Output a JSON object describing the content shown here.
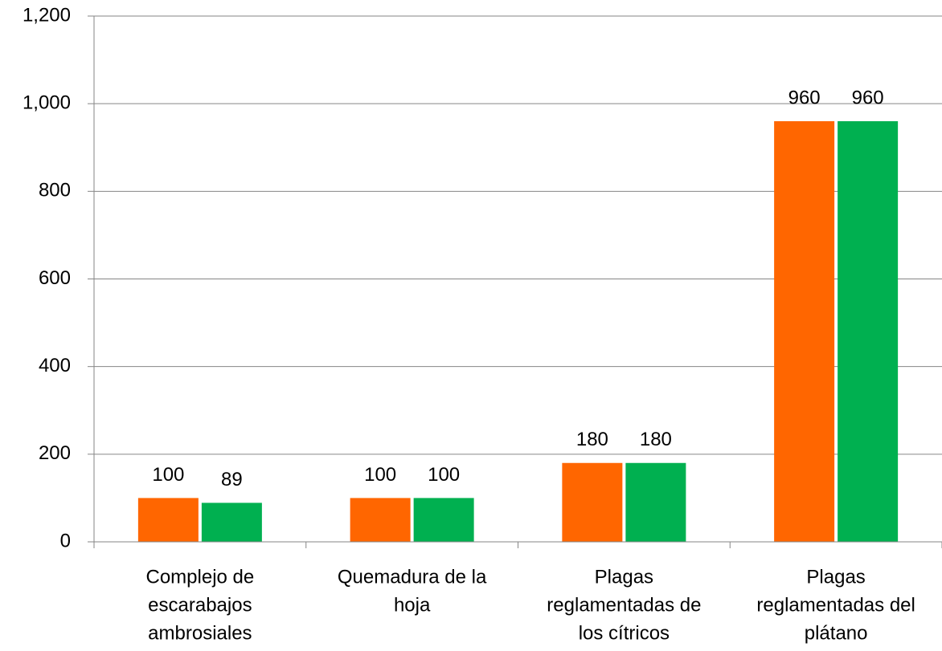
{
  "chart_data": {
    "type": "bar",
    "categories": [
      [
        "Complejo de",
        "escarabajos",
        "ambrosiales"
      ],
      [
        "Quemadura de la",
        "hoja"
      ],
      [
        "Plagas",
        "reglamentadas de",
        "los cítricos"
      ],
      [
        "Plagas",
        "reglamentadas del",
        "plátano"
      ]
    ],
    "series": [
      {
        "color": "#ff6600",
        "values": [
          100,
          100,
          180,
          960
        ]
      },
      {
        "color": "#00b050",
        "values": [
          89,
          100,
          180,
          960
        ]
      }
    ],
    "ylim": [
      0,
      1200
    ],
    "yticks": [
      0,
      200,
      400,
      600,
      800,
      {
        "value": 1000,
        "label": "1,000"
      },
      {
        "value": 1200,
        "label": "1,200"
      }
    ],
    "grid": true
  }
}
